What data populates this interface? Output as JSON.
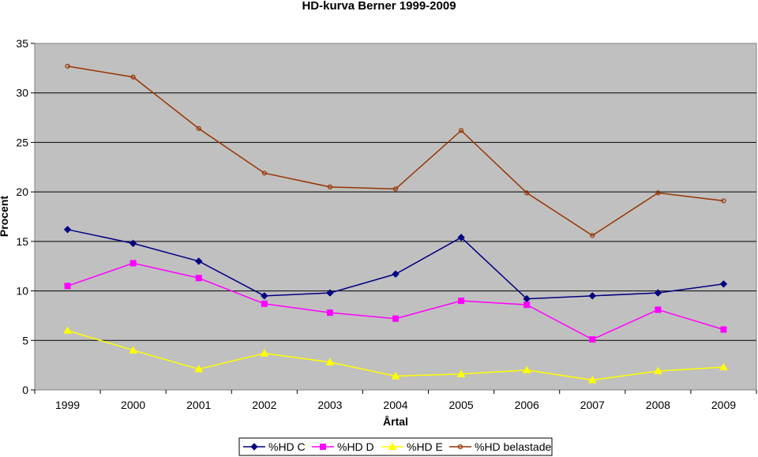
{
  "chart_data": {
    "type": "line",
    "title": "HD-kurva Berner 1999-2009",
    "xlabel": "Årtal",
    "ylabel": "Procent",
    "categories": [
      "1999",
      "2000",
      "2001",
      "2002",
      "2003",
      "2004",
      "2005",
      "2006",
      "2007",
      "2008",
      "2009"
    ],
    "ylim": [
      0,
      35
    ],
    "yticks": [
      "0",
      "5",
      "10",
      "15",
      "20",
      "25",
      "30",
      "35"
    ],
    "grid": true,
    "legend_position": "bottom",
    "plot_background": "#c0c0c0",
    "series": [
      {
        "name": "%HD C",
        "color": "#000080",
        "marker": "diamond",
        "values": [
          16.2,
          14.8,
          13.0,
          9.5,
          9.8,
          11.7,
          15.4,
          9.2,
          9.5,
          9.8,
          10.7
        ]
      },
      {
        "name": "%HD D",
        "color": "#ff00ff",
        "marker": "square",
        "values": [
          10.5,
          12.8,
          11.3,
          8.7,
          7.8,
          7.2,
          9.0,
          8.6,
          5.1,
          8.1,
          6.1
        ]
      },
      {
        "name": "%HD E",
        "color": "#ffff00",
        "marker": "triangle",
        "values": [
          6.0,
          4.0,
          2.1,
          3.7,
          2.8,
          1.4,
          1.6,
          2.0,
          1.0,
          1.9,
          2.3
        ]
      },
      {
        "name": "%HD belastade",
        "color": "#993300",
        "marker": "circle",
        "values": [
          32.7,
          31.6,
          26.4,
          21.9,
          20.5,
          20.3,
          26.2,
          19.9,
          15.6,
          19.9,
          19.1
        ]
      }
    ]
  }
}
